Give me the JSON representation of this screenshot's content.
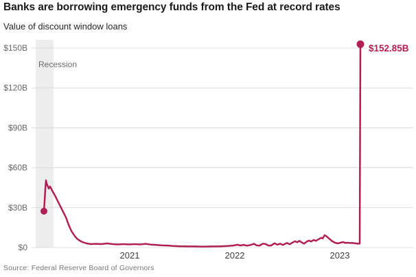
{
  "header": {
    "title": "Banks are borrowing emergency funds from the Fed at record rates",
    "subtitle": "Value of discount window loans"
  },
  "footer": {
    "source": "Source: Federal Reserve Board of Governors"
  },
  "chart_data": {
    "type": "line",
    "title": "Banks are borrowing emergency funds from the Fed at record rates",
    "subtitle": "Value of discount window loans",
    "source": "Source: Federal Reserve Board of Governors",
    "unit": "billions of USD",
    "ylim": [
      0,
      150
    ],
    "grid": true,
    "y_tick_labels": [
      "$150B",
      "$120B",
      "$90B",
      "$60B",
      "$30B",
      "$0"
    ],
    "y_tick_values": [
      150,
      120,
      90,
      60,
      30,
      0
    ],
    "x_tick_labels": [
      "2021",
      "2022",
      "2023"
    ],
    "annotations": {
      "recession_label": "Recession",
      "end_value_label": "$152.85B",
      "end_value": 152.85,
      "start_value": 27.3,
      "peak_2020_value": 50.5
    },
    "colors": {
      "line": "#b01e53",
      "recession_band": "#ededed",
      "gridline": "#dcdcdc"
    },
    "series": [
      {
        "name": "Value of discount window loans",
        "color": "#b01e53",
        "points": [
          [
            64,
            27.3
          ],
          [
            65,
            35
          ],
          [
            66,
            44
          ],
          [
            67,
            50.5
          ],
          [
            68,
            48
          ],
          [
            69,
            46.9
          ],
          [
            71,
            44.3
          ],
          [
            73,
            45.9
          ],
          [
            76,
            42.8
          ],
          [
            78,
            41
          ],
          [
            80,
            39.2
          ],
          [
            84,
            35
          ],
          [
            88,
            30.9
          ],
          [
            92,
            26.8
          ],
          [
            96,
            22.7
          ],
          [
            100,
            17
          ],
          [
            104,
            12.4
          ],
          [
            108,
            9.3
          ],
          [
            112,
            6.7
          ],
          [
            116,
            5.2
          ],
          [
            120,
            4.1
          ],
          [
            126,
            3.1
          ],
          [
            132,
            2.6
          ],
          [
            140,
            2.8
          ],
          [
            148,
            2.6
          ],
          [
            156,
            3.1
          ],
          [
            164,
            2.6
          ],
          [
            172,
            2.3
          ],
          [
            180,
            2.6
          ],
          [
            188,
            2.3
          ],
          [
            196,
            2.6
          ],
          [
            204,
            2.3
          ],
          [
            212,
            2.8
          ],
          [
            220,
            2.2
          ],
          [
            228,
            1.9
          ],
          [
            236,
            1.6
          ],
          [
            244,
            1.5
          ],
          [
            252,
            1.2
          ],
          [
            260,
            1.0
          ],
          [
            268,
            0.9
          ],
          [
            276,
            0.8
          ],
          [
            284,
            0.8
          ],
          [
            292,
            0.7
          ],
          [
            300,
            0.7
          ],
          [
            308,
            0.8
          ],
          [
            316,
            0.8
          ],
          [
            324,
            1.0
          ],
          [
            332,
            1.2
          ],
          [
            340,
            1.5
          ],
          [
            346,
            2.1
          ],
          [
            350,
            1.5
          ],
          [
            355,
            2.0
          ],
          [
            360,
            1.4
          ],
          [
            365,
            1.9
          ],
          [
            370,
            2.8
          ],
          [
            374,
            1.6
          ],
          [
            378,
            1.4
          ],
          [
            383,
            2.9
          ],
          [
            387,
            2.6
          ],
          [
            391,
            1.5
          ],
          [
            395,
            1.5
          ],
          [
            400,
            3.2
          ],
          [
            404,
            2.1
          ],
          [
            408,
            2.9
          ],
          [
            412,
            1.9
          ],
          [
            418,
            3.4
          ],
          [
            422,
            2.4
          ],
          [
            426,
            3.7
          ],
          [
            430,
            4.7
          ],
          [
            433,
            3.9
          ],
          [
            436,
            5.0
          ],
          [
            440,
            3.7
          ],
          [
            443,
            2.9
          ],
          [
            447,
            4.5
          ],
          [
            450,
            5.2
          ],
          [
            453,
            4.5
          ],
          [
            457,
            5.7
          ],
          [
            460,
            5.0
          ],
          [
            465,
            6.5
          ],
          [
            468,
            7.3
          ],
          [
            470,
            6.8
          ],
          [
            473,
            9.3
          ],
          [
            476,
            8.3
          ],
          [
            480,
            6.5
          ],
          [
            484,
            4.7
          ],
          [
            488,
            3.6
          ],
          [
            492,
            3.1
          ],
          [
            496,
            3.6
          ],
          [
            500,
            4.1
          ],
          [
            503,
            3.4
          ],
          [
            506,
            3.6
          ],
          [
            510,
            3.4
          ],
          [
            514,
            3.4
          ],
          [
            518,
            3.1
          ],
          [
            521,
            2.9
          ],
          [
            524,
            3.0
          ],
          [
            525,
            152.85
          ]
        ]
      }
    ]
  }
}
